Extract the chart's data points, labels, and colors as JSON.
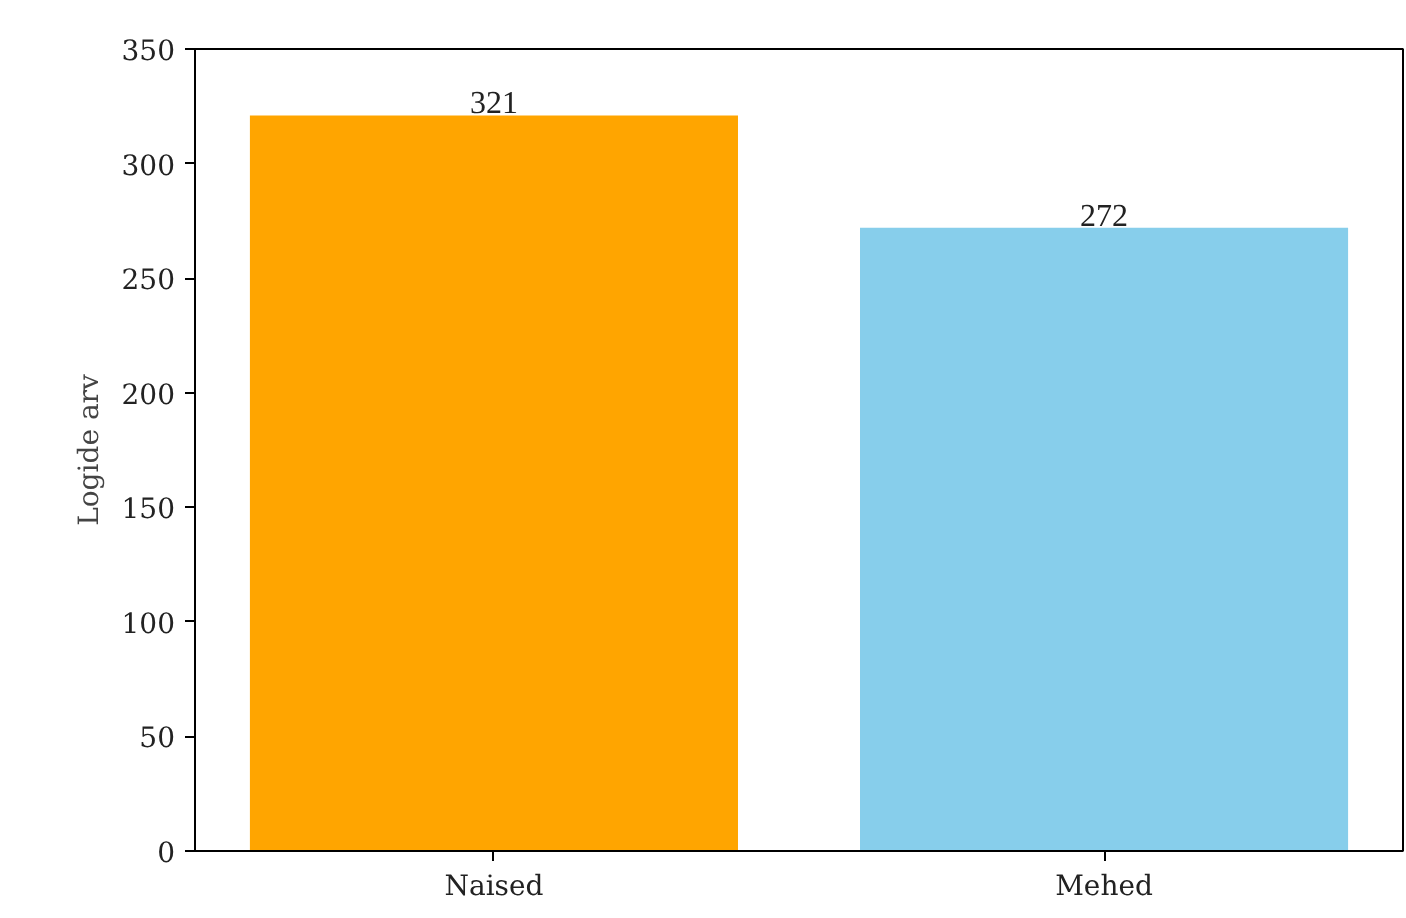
{
  "chart_data": {
    "type": "bar",
    "ylabel": "Logide arv",
    "categories": [
      "Naised",
      "Mehed"
    ],
    "values": [
      321,
      272
    ],
    "colors": [
      "#ffa500",
      "#87ceeb"
    ],
    "ylim": [
      0,
      350
    ],
    "yticks": [
      0,
      50,
      100,
      150,
      200,
      250,
      300,
      350
    ],
    "data_labels": true,
    "grid": false
  }
}
